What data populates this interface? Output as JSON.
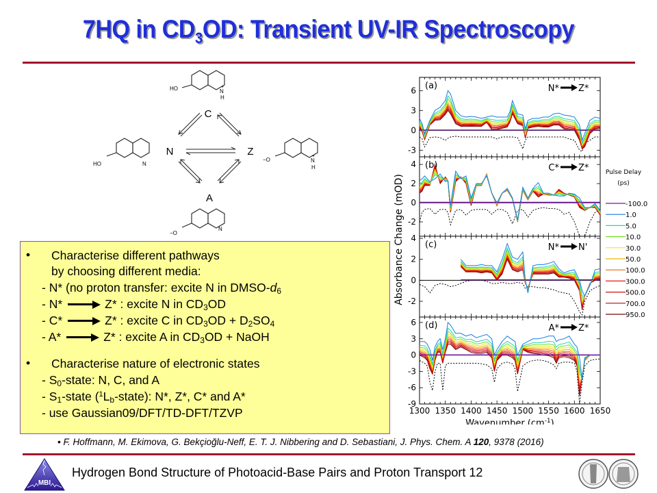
{
  "slide": {
    "title_pre": "7HQ in CD",
    "title_sub": "3",
    "title_post": "OD: Transient UV-IR Spectroscopy",
    "footer_text": "Hydrogen Bond Structure of Photoacid-Base Pairs and Proton Transport 12",
    "logo_text": "MBI",
    "citation_authors": "F. Hoffmann, M. Ekimova, G. Bekçioğlu-Neff, E. T. J. Nibbering and D. Sebastiani, J. Phys. Chem. A ",
    "citation_volume": "120",
    "citation_rest": ", 9378 (2016)",
    "citation_bullet": "•"
  },
  "scheme": {
    "nodes": {
      "C": "C",
      "N": "N",
      "Z": "Z",
      "A": "A"
    },
    "substituents": {
      "ho": "HO",
      "o_minus": "−O",
      "n": "N",
      "n_plus": "N",
      "plus": "+",
      "h": "H"
    }
  },
  "textbox": {
    "bullet": "•",
    "b1_line1": "Characterise different pathways",
    "b1_line2": " by choosing different media:",
    "l3_pre": "- N* (no proton transfer: excite N in DMSO-",
    "l3_it": "d",
    "l3_sub": "6",
    "l4_pre": "- N*",
    "l4_post_a": "Z* : excite N in CD",
    "l4_sub": "3",
    "l4_post_b": "OD",
    "l5_pre": "- C*",
    "l5_a": "Z* : excite C in CD",
    "l5_sub1": "3",
    "l5_b": "OD + D",
    "l5_sub2": "2",
    "l5_c": "SO",
    "l5_sub3": "4",
    "l6_pre": "- A*",
    "l6_a": "Z* : excite A in CD",
    "l6_sub": "3",
    "l6_b": "OD + NaOH",
    "b2_line1": "Characterise nature of electronic states",
    "s0_a": "- S",
    "s0_sub": "0",
    "s0_b": "-state: N, C, and A",
    "s1_a": "- S",
    "s1_sub": "1",
    "s1_b": "-state (",
    "s1_sup": "1",
    "s1_c": "L",
    "s1_sub2": "b",
    "s1_d": "-state): N*, Z*, C* and A*",
    "last": "- use Gaussian09/DFT/TD-DFT/TZVP"
  },
  "chart_data": {
    "type": "line",
    "xlabel": "Wavenumber (cm",
    "xlabel_sup": "-1",
    "xlabel_close": ")",
    "ylabel": "Absorbance Change (mOD)",
    "xlim": [
      1300,
      1650
    ],
    "xticks": [
      "1300",
      "1350",
      "1400",
      "1450",
      "1500",
      "1550",
      "1600",
      "1650"
    ],
    "legend_title_1": "Pulse Delay",
    "legend_title_2": "(ps)",
    "legend": [
      {
        "label": "-100.0",
        "color": "#7a10b0"
      },
      {
        "label": "1.0",
        "color": "#1a78e0"
      },
      {
        "label": "5.0",
        "color": "#20d8b0"
      },
      {
        "label": "10.0",
        "color": "#70e020"
      },
      {
        "label": "30.0",
        "color": "#e8e820"
      },
      {
        "label": "50.0",
        "color": "#f0b800"
      },
      {
        "label": "100.0",
        "color": "#f06010"
      },
      {
        "label": "300.0",
        "color": "#e81818"
      },
      {
        "label": "500.0",
        "color": "#d01010"
      },
      {
        "label": "700.0",
        "color": "#b00c10"
      },
      {
        "label": "950.0",
        "color": "#780808"
      }
    ],
    "panels": [
      {
        "tag": "(a)",
        "from": "N*",
        "to": "Z*",
        "ylim": [
          -4,
          8
        ],
        "yticks": [
          "6",
          "3",
          "0",
          "-3"
        ],
        "ytick_vals": [
          6,
          3,
          0,
          -3
        ],
        "x": [
          1300,
          1305,
          1310,
          1320,
          1330,
          1340,
          1350,
          1355,
          1360,
          1370,
          1380,
          1390,
          1400,
          1410,
          1420,
          1430,
          1440,
          1450,
          1460,
          1470,
          1475,
          1480,
          1490,
          1500,
          1505,
          1510,
          1520,
          1530,
          1540,
          1550,
          1560,
          1570,
          1580,
          1590,
          1600,
          1610,
          1615,
          1620,
          1630,
          1640,
          1650
        ],
        "ground": [
          -1,
          -1.3,
          -2.5,
          -1.1,
          -1,
          -1.1,
          -1.5,
          -1.2,
          -1,
          -0.9,
          -1,
          -1,
          -1,
          -1,
          -1,
          -1,
          -1,
          -1.3,
          -1,
          -1,
          -1,
          -1,
          -1.1,
          -2.8,
          -1.5,
          -1,
          -1,
          -1,
          -1,
          -1,
          -1,
          -1,
          -1,
          -1.3,
          -1.5,
          -3,
          -3.2,
          -2,
          -1.5,
          -1,
          -1
        ],
        "early": [
          1.8,
          1,
          -0.5,
          1.5,
          3,
          3.5,
          4.5,
          6,
          5.5,
          3,
          2.2,
          2,
          2.1,
          2,
          1.8,
          2,
          2.2,
          2,
          2,
          2,
          2.8,
          4.5,
          2.5,
          2.3,
          0.2,
          1.5,
          1.8,
          1.8,
          2,
          2,
          2.5,
          2.6,
          2.3,
          2.2,
          2,
          0.8,
          -1.5,
          -0.5,
          1.5,
          2,
          1.8
        ],
        "late": [
          0.3,
          -0.2,
          -1.4,
          0.8,
          1.5,
          1.6,
          2.4,
          3,
          2.5,
          1,
          0.6,
          0.6,
          0.6,
          0.6,
          0.6,
          1.2,
          0.1,
          0.1,
          0.3,
          0.5,
          1.2,
          2.5,
          1,
          0.7,
          -1.2,
          0.3,
          0.5,
          0.6,
          0.5,
          0.5,
          0.8,
          0.8,
          0.2,
          0.1,
          0,
          -1.5,
          -2.8,
          -2.5,
          -0.5,
          0.2,
          0.3
        ]
      },
      {
        "tag": "(b)",
        "from": "C*",
        "to": "Z*",
        "ylim": [
          -3.5,
          4.8
        ],
        "yticks": [
          "4",
          "2",
          "0",
          "-2"
        ],
        "ytick_vals": [
          4,
          2,
          0,
          -2
        ],
        "x": [
          1300,
          1305,
          1310,
          1320,
          1330,
          1340,
          1350,
          1355,
          1360,
          1370,
          1380,
          1390,
          1400,
          1410,
          1420,
          1430,
          1440,
          1450,
          1460,
          1470,
          1480,
          1490,
          1500,
          1510,
          1520,
          1530,
          1540,
          1550,
          1560,
          1570,
          1580,
          1590,
          1600,
          1610,
          1620,
          1630,
          1640,
          1650
        ],
        "ground": [
          -2,
          -1,
          -0.7,
          -0.6,
          -1.2,
          -0.7,
          -0.7,
          -1,
          -2.3,
          -0.8,
          -0.7,
          -1.3,
          -0.8,
          -0.7,
          -0.7,
          -0.7,
          -1.2,
          -0.7,
          -0.7,
          -1,
          -2.2,
          -0.8,
          -0.7,
          -1.5,
          -0.8,
          -0.6,
          -0.5,
          -0.6,
          -0.6,
          -0.7,
          -1.2,
          -1,
          -2,
          -3.5,
          -3.5,
          -2,
          -1,
          -0.7
        ],
        "early": [
          2.3,
          2.5,
          2.8,
          2.2,
          2.5,
          3,
          2.2,
          2.3,
          -0.3,
          3.3,
          2.5,
          2.8,
          0.5,
          2,
          2,
          2.8,
          1,
          0,
          1,
          1.5,
          0.5,
          -1.8,
          1.6,
          0.5,
          1.5,
          2.1,
          1,
          1,
          0.8,
          0.7,
          0.7,
          1,
          0.9,
          0.5,
          -0.5,
          -0.5,
          -0.1,
          -0.8
        ],
        "late": [
          1,
          1.2,
          1.8,
          1.8,
          4,
          2,
          2.7,
          2.3,
          -1,
          2.2,
          2.7,
          2,
          -0.3,
          1.8,
          1.8,
          3,
          1,
          -0.3,
          1,
          1.3,
          0.4,
          -2,
          1.3,
          0.3,
          1.2,
          0.6,
          0.9,
          0.8,
          0.8,
          1.4,
          1,
          0.8,
          0.6,
          -0.5,
          -0.8,
          -0.5,
          -0.5,
          -1.3
        ]
      },
      {
        "tag": "(c)",
        "from": "N*",
        "to": "N'",
        "ylim": [
          -3.5,
          4.2
        ],
        "yticks": [
          "4",
          "2",
          "0",
          "-2"
        ],
        "ytick_vals": [
          4,
          2,
          0,
          -2
        ],
        "x": [
          1300,
          1310,
          1320,
          1330,
          1340,
          1350,
          1360,
          1370,
          1380,
          1390,
          1400,
          1410,
          1420,
          1430,
          1440,
          1450,
          1460,
          1470,
          1480,
          1490,
          1500,
          1505,
          1510,
          1520,
          1530,
          1540,
          1550,
          1560,
          1570,
          1580,
          1590,
          1600,
          1610,
          1615,
          1620,
          1630,
          1640,
          1650
        ],
        "ground": [
          -0.4,
          -0.6,
          -1.2,
          -0.5,
          -0.3,
          -0.4,
          -0.6,
          -0.5,
          -0.3,
          -0.1,
          0,
          0,
          0,
          -0.1,
          -0.3,
          -0.3,
          -0.2,
          -0.3,
          -0.3,
          -0.2,
          -0.3,
          -0.8,
          -0.6,
          -0.6,
          -0.7,
          -0.7,
          -0.8,
          -0.9,
          -1.1,
          -1.2,
          -1.3,
          -2,
          -3,
          -3.3,
          -2,
          -1,
          -0.7,
          -0.5
        ],
        "x2": [
          1380,
          1390,
          1400,
          1410,
          1420,
          1430,
          1440,
          1450,
          1460,
          1470,
          1480,
          1490,
          1500,
          1505,
          1510,
          1520,
          1530,
          1540,
          1550,
          1560,
          1570,
          1580,
          1590,
          1600,
          1610,
          1615,
          1620,
          1630,
          1640,
          1650
        ],
        "early": [
          2,
          1.4,
          1.4,
          1.4,
          1.5,
          1.4,
          1.4,
          0.8,
          2,
          3.5,
          2.2,
          2,
          2.7,
          0,
          -1.2,
          1.4,
          1.5,
          1.5,
          1.6,
          1.8,
          1.1,
          0.7,
          0.9,
          1,
          0,
          -1,
          -1.5,
          -0.5,
          1,
          1.1
        ],
        "late": [
          1.3,
          0.8,
          0.8,
          0.8,
          0.7,
          0.8,
          0.7,
          0,
          0.6,
          2,
          1,
          0.8,
          1,
          -0.3,
          -0.7,
          0.6,
          0.6,
          0.6,
          0.6,
          0.7,
          0.3,
          0.3,
          0.2,
          0,
          -1,
          -2.8,
          -1.5,
          -0.3,
          0,
          0.1
        ]
      },
      {
        "tag": "(d)",
        "from": "A*",
        "to": "Z*",
        "ylim": [
          -9,
          7
        ],
        "yticks": [
          "6",
          "3",
          "0",
          "-3",
          "-6",
          "-9"
        ],
        "ytick_vals": [
          6,
          3,
          0,
          -3,
          -6,
          -9
        ],
        "x": [
          1300,
          1310,
          1315,
          1320,
          1325,
          1330,
          1335,
          1340,
          1345,
          1350,
          1355,
          1360,
          1370,
          1380,
          1390,
          1400,
          1410,
          1420,
          1430,
          1440,
          1445,
          1450,
          1460,
          1470,
          1480,
          1485,
          1490,
          1500,
          1510,
          1520,
          1530,
          1540,
          1550,
          1560,
          1565,
          1570,
          1580,
          1590,
          1600,
          1605,
          1610,
          1615,
          1620,
          1630,
          1640,
          1650
        ],
        "ground": [
          -1,
          -1.5,
          -2,
          -5,
          -6.5,
          -3,
          -1.5,
          -1.5,
          -6.5,
          -2,
          -1.5,
          -1.5,
          -1.5,
          -1.5,
          -1.5,
          -1.5,
          -1.5,
          -1.6,
          -1.8,
          -2.5,
          -5,
          -2.5,
          -1.5,
          -1.3,
          -1.6,
          -2.5,
          -6.7,
          -2,
          -1.3,
          -1,
          -0.9,
          -1,
          -1.3,
          -1.8,
          -2.5,
          -1.5,
          -1.3,
          -1.3,
          -1.5,
          -3,
          -9,
          -5,
          -2,
          -1,
          -0.8,
          -0.7
        ],
        "early": [
          2.5,
          2.5,
          2,
          1,
          -1,
          1.5,
          2.5,
          3,
          1,
          3,
          6,
          5.5,
          4,
          4,
          3.5,
          3.8,
          3.2,
          3.5,
          3.8,
          3,
          0,
          1,
          2.5,
          3.5,
          2.8,
          2.5,
          0,
          2,
          2.5,
          3,
          3,
          3.2,
          3.5,
          3.5,
          2.5,
          2.8,
          3,
          3.5,
          2,
          1.5,
          -0.5,
          -4.5,
          -0.5,
          0,
          0,
          0
        ],
        "late": [
          0,
          -0.5,
          -1,
          -2.5,
          -3.5,
          -1,
          0.5,
          0.5,
          -1.5,
          0.5,
          2,
          2,
          1,
          1.5,
          1,
          0.5,
          0.3,
          0.3,
          0.5,
          -0.5,
          -3,
          -1,
          0,
          0,
          -0.5,
          -1,
          -3.5,
          1,
          0.5,
          0.3,
          0.2,
          0,
          -0.1,
          -0.5,
          -1.5,
          -0.5,
          -0.3,
          -0.5,
          -1,
          -2,
          -7.5,
          -4,
          -1,
          0,
          0,
          0
        ]
      }
    ]
  }
}
